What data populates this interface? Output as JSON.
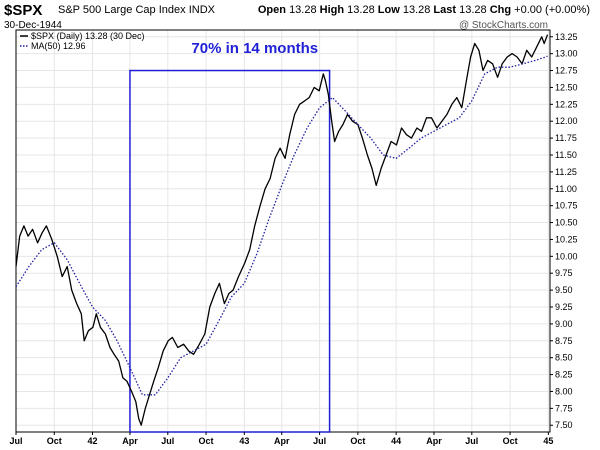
{
  "header": {
    "symbol": "$SPX",
    "description": "S&P 500 Large Cap Index",
    "exchange": "INDX",
    "date": "30-Dec-1944",
    "open_label": "Open",
    "open": "13.28",
    "high_label": "High",
    "high": "13.28",
    "low_label": "Low",
    "low": "13.28",
    "last_label": "Last",
    "last": "13.28",
    "chg_label": "Chg",
    "chg": "+0.00 (+0.00%)",
    "brand": "@ StockCharts.com"
  },
  "legend": {
    "series_label": "$SPX (Daily) 13.28 (30 Dec)",
    "ma_label": "MA(50) 12.96"
  },
  "colors": {
    "price": "#000000",
    "ma": "#1f1f9f",
    "box": "#1f1fd6",
    "annotation": "#1f1fd6"
  },
  "chart_data": {
    "type": "line",
    "title": "",
    "xlabel": "",
    "ylabel": "",
    "ylim": [
      7.4,
      13.35
    ],
    "y_ticks": [
      "7.50",
      "7.75",
      "8.00",
      "8.25",
      "8.50",
      "8.75",
      "9.00",
      "9.25",
      "9.50",
      "9.75",
      "10.00",
      "10.25",
      "10.50",
      "10.75",
      "11.00",
      "11.25",
      "11.50",
      "11.75",
      "12.00",
      "12.25",
      "12.50",
      "12.75",
      "13.00",
      "13.25"
    ],
    "x_range": [
      "1941-07-01",
      "1945-01-05"
    ],
    "x_ticks": [
      {
        "date": "1941-07-01",
        "label": "Jul"
      },
      {
        "date": "1941-10-01",
        "label": "Oct"
      },
      {
        "date": "1942-01-01",
        "label": "42"
      },
      {
        "date": "1942-04-01",
        "label": "Apr"
      },
      {
        "date": "1942-07-01",
        "label": "Jul"
      },
      {
        "date": "1942-10-01",
        "label": "Oct"
      },
      {
        "date": "1943-01-01",
        "label": "43"
      },
      {
        "date": "1943-04-01",
        "label": "Apr"
      },
      {
        "date": "1943-07-01",
        "label": "Jul"
      },
      {
        "date": "1943-10-01",
        "label": "Oct"
      },
      {
        "date": "1944-01-01",
        "label": "44"
      },
      {
        "date": "1944-04-01",
        "label": "Apr"
      },
      {
        "date": "1944-07-01",
        "label": "Jul"
      },
      {
        "date": "1944-10-01",
        "label": "Oct"
      },
      {
        "date": "1945-01-01",
        "label": "45"
      }
    ],
    "series": [
      {
        "name": "$SPX (Daily)",
        "points": [
          [
            "1941-07-01",
            9.85
          ],
          [
            "1941-07-10",
            10.3
          ],
          [
            "1941-07-20",
            10.45
          ],
          [
            "1941-07-30",
            10.3
          ],
          [
            "1941-08-10",
            10.4
          ],
          [
            "1941-08-22",
            10.2
          ],
          [
            "1941-09-02",
            10.35
          ],
          [
            "1941-09-12",
            10.45
          ],
          [
            "1941-09-25",
            10.25
          ],
          [
            "1941-10-08",
            10.0
          ],
          [
            "1941-10-20",
            9.7
          ],
          [
            "1941-11-01",
            9.85
          ],
          [
            "1941-11-12",
            9.5
          ],
          [
            "1941-11-24",
            9.3
          ],
          [
            "1941-12-05",
            9.15
          ],
          [
            "1941-12-12",
            8.75
          ],
          [
            "1941-12-22",
            8.9
          ],
          [
            "1942-01-02",
            8.95
          ],
          [
            "1942-01-10",
            9.15
          ],
          [
            "1942-01-20",
            8.95
          ],
          [
            "1942-02-01",
            8.85
          ],
          [
            "1942-02-12",
            8.65
          ],
          [
            "1942-02-22",
            8.55
          ],
          [
            "1942-03-05",
            8.45
          ],
          [
            "1942-03-15",
            8.2
          ],
          [
            "1942-03-25",
            8.15
          ],
          [
            "1942-04-05",
            8.0
          ],
          [
            "1942-04-15",
            7.85
          ],
          [
            "1942-04-22",
            7.6
          ],
          [
            "1942-04-28",
            7.5
          ],
          [
            "1942-05-08",
            7.75
          ],
          [
            "1942-05-18",
            7.95
          ],
          [
            "1942-05-28",
            8.15
          ],
          [
            "1942-06-08",
            8.35
          ],
          [
            "1942-06-20",
            8.6
          ],
          [
            "1942-07-02",
            8.75
          ],
          [
            "1942-07-12",
            8.8
          ],
          [
            "1942-07-25",
            8.65
          ],
          [
            "1942-08-08",
            8.7
          ],
          [
            "1942-08-20",
            8.6
          ],
          [
            "1942-09-01",
            8.55
          ],
          [
            "1942-09-15",
            8.7
          ],
          [
            "1942-09-28",
            8.85
          ],
          [
            "1942-10-10",
            9.25
          ],
          [
            "1942-10-22",
            9.45
          ],
          [
            "1942-11-02",
            9.6
          ],
          [
            "1942-11-14",
            9.3
          ],
          [
            "1942-11-25",
            9.45
          ],
          [
            "1942-12-05",
            9.5
          ],
          [
            "1942-12-18",
            9.7
          ],
          [
            "1943-01-02",
            9.9
          ],
          [
            "1943-01-14",
            10.1
          ],
          [
            "1943-01-26",
            10.45
          ],
          [
            "1943-02-08",
            10.75
          ],
          [
            "1943-02-20",
            11.0
          ],
          [
            "1943-03-04",
            11.15
          ],
          [
            "1943-03-16",
            11.45
          ],
          [
            "1943-03-28",
            11.6
          ],
          [
            "1943-04-09",
            11.45
          ],
          [
            "1943-04-20",
            11.8
          ],
          [
            "1943-05-02",
            12.1
          ],
          [
            "1943-05-14",
            12.25
          ],
          [
            "1943-05-26",
            12.3
          ],
          [
            "1943-06-06",
            12.35
          ],
          [
            "1943-06-18",
            12.5
          ],
          [
            "1943-06-30",
            12.45
          ],
          [
            "1943-07-10",
            12.7
          ],
          [
            "1943-07-15",
            12.6
          ],
          [
            "1943-07-22",
            12.4
          ],
          [
            "1943-07-30",
            12.0
          ],
          [
            "1943-08-06",
            11.7
          ],
          [
            "1943-08-16",
            11.85
          ],
          [
            "1943-08-26",
            11.95
          ],
          [
            "1943-09-06",
            12.1
          ],
          [
            "1943-09-18",
            12.0
          ],
          [
            "1943-10-01",
            11.95
          ],
          [
            "1943-10-12",
            11.75
          ],
          [
            "1943-10-24",
            11.5
          ],
          [
            "1943-11-04",
            11.3
          ],
          [
            "1943-11-14",
            11.05
          ],
          [
            "1943-11-26",
            11.3
          ],
          [
            "1943-12-08",
            11.5
          ],
          [
            "1943-12-20",
            11.7
          ],
          [
            "1944-01-02",
            11.65
          ],
          [
            "1944-01-14",
            11.9
          ],
          [
            "1944-01-26",
            11.8
          ],
          [
            "1944-02-07",
            11.75
          ],
          [
            "1944-02-20",
            11.9
          ],
          [
            "1944-03-02",
            11.85
          ],
          [
            "1944-03-14",
            12.05
          ],
          [
            "1944-03-26",
            12.05
          ],
          [
            "1944-04-08",
            11.9
          ],
          [
            "1944-04-20",
            12.0
          ],
          [
            "1944-05-02",
            12.1
          ],
          [
            "1944-05-14",
            12.25
          ],
          [
            "1944-05-26",
            12.35
          ],
          [
            "1944-06-07",
            12.2
          ],
          [
            "1944-06-18",
            12.6
          ],
          [
            "1944-06-28",
            12.95
          ],
          [
            "1944-07-08",
            13.15
          ],
          [
            "1944-07-18",
            13.05
          ],
          [
            "1944-07-28",
            12.75
          ],
          [
            "1944-08-08",
            12.9
          ],
          [
            "1944-08-20",
            12.85
          ],
          [
            "1944-09-01",
            12.65
          ],
          [
            "1944-09-12",
            12.85
          ],
          [
            "1944-09-24",
            12.95
          ],
          [
            "1944-10-06",
            13.0
          ],
          [
            "1944-10-18",
            12.95
          ],
          [
            "1944-10-30",
            12.85
          ],
          [
            "1944-11-10",
            13.05
          ],
          [
            "1944-11-22",
            12.95
          ],
          [
            "1944-12-04",
            13.1
          ],
          [
            "1944-12-16",
            13.25
          ],
          [
            "1944-12-22",
            13.15
          ],
          [
            "1944-12-30",
            13.28
          ]
        ]
      },
      {
        "name": "MA(50)",
        "points": [
          [
            "1941-07-01",
            9.55
          ],
          [
            "1941-08-01",
            9.85
          ],
          [
            "1941-09-01",
            10.1
          ],
          [
            "1941-10-01",
            10.2
          ],
          [
            "1941-11-01",
            9.95
          ],
          [
            "1941-12-01",
            9.6
          ],
          [
            "1942-01-01",
            9.25
          ],
          [
            "1942-02-01",
            9.05
          ],
          [
            "1942-03-01",
            8.75
          ],
          [
            "1942-04-01",
            8.35
          ],
          [
            "1942-05-01",
            7.95
          ],
          [
            "1942-06-01",
            7.95
          ],
          [
            "1942-07-01",
            8.2
          ],
          [
            "1942-08-01",
            8.5
          ],
          [
            "1942-09-01",
            8.6
          ],
          [
            "1942-10-01",
            8.7
          ],
          [
            "1942-11-01",
            9.05
          ],
          [
            "1942-12-01",
            9.4
          ],
          [
            "1943-01-01",
            9.6
          ],
          [
            "1943-02-01",
            10.05
          ],
          [
            "1943-03-01",
            10.55
          ],
          [
            "1943-04-01",
            11.05
          ],
          [
            "1943-05-01",
            11.5
          ],
          [
            "1943-06-01",
            11.9
          ],
          [
            "1943-07-01",
            12.2
          ],
          [
            "1943-08-01",
            12.35
          ],
          [
            "1943-09-01",
            12.15
          ],
          [
            "1943-10-01",
            11.95
          ],
          [
            "1943-11-01",
            11.75
          ],
          [
            "1943-12-01",
            11.5
          ],
          [
            "1944-01-01",
            11.45
          ],
          [
            "1944-02-01",
            11.6
          ],
          [
            "1944-03-01",
            11.75
          ],
          [
            "1944-04-01",
            11.85
          ],
          [
            "1944-05-01",
            11.95
          ],
          [
            "1944-06-01",
            12.05
          ],
          [
            "1944-07-01",
            12.3
          ],
          [
            "1944-08-01",
            12.7
          ],
          [
            "1944-09-01",
            12.8
          ],
          [
            "1944-10-01",
            12.8
          ],
          [
            "1944-11-01",
            12.85
          ],
          [
            "1944-12-01",
            12.9
          ],
          [
            "1944-12-30",
            12.96
          ]
        ]
      }
    ],
    "annotations": [
      {
        "text": "70% in 14 months",
        "box_from": "1942-04-01",
        "box_to": "1943-07-25",
        "box_low": 7.4,
        "box_high": 12.75
      }
    ]
  }
}
